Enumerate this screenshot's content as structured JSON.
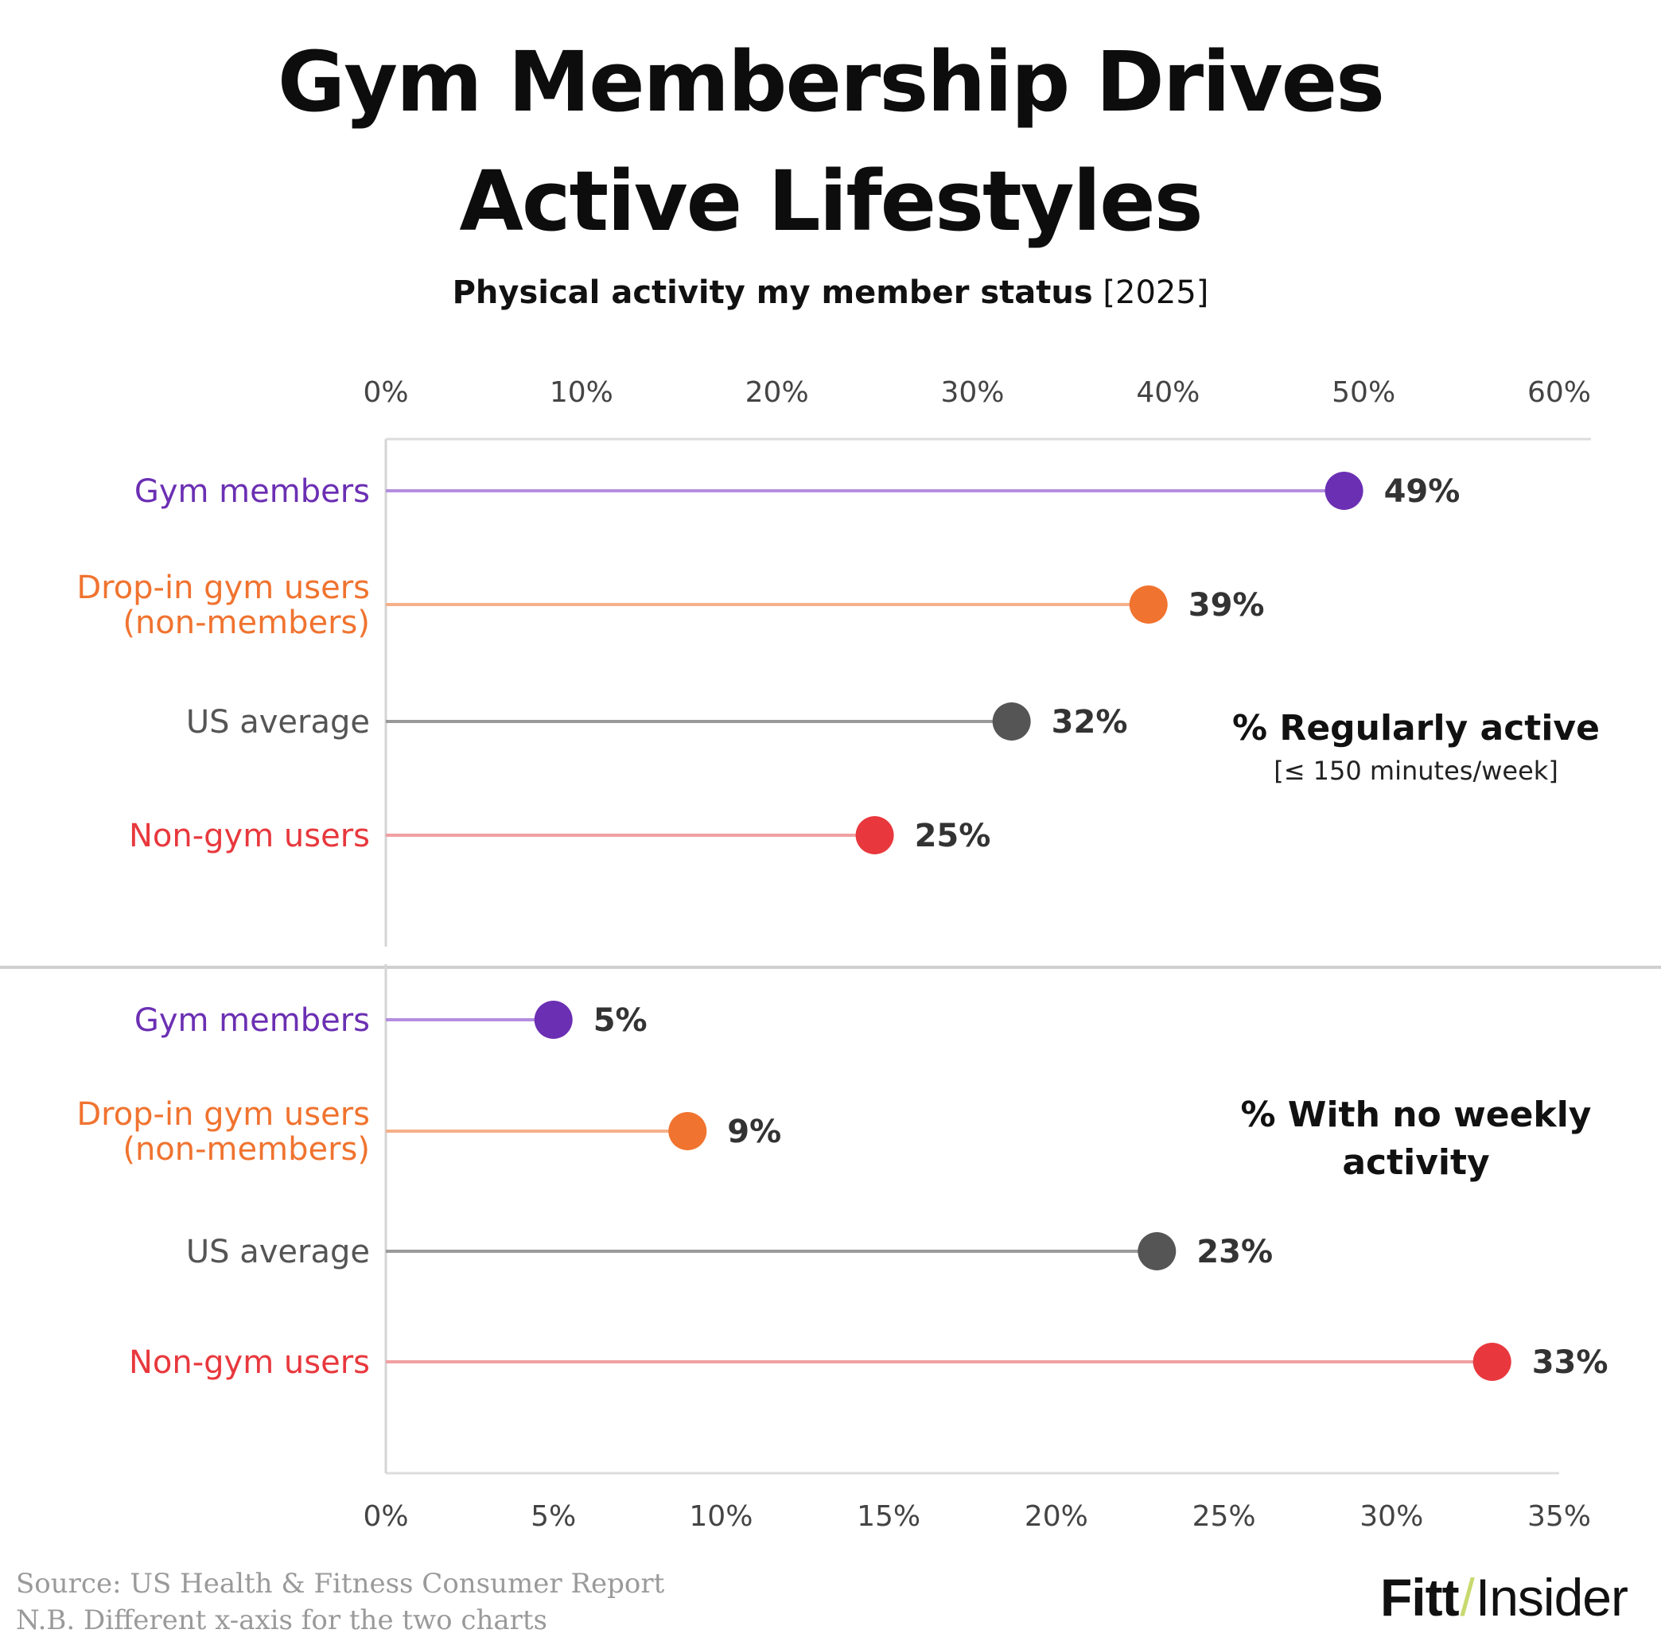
{
  "title_lines": [
    "Gym Membership Drives",
    "Active Lifestyles"
  ],
  "subtitle_main": "Physical activity my member status",
  "subtitle_year": "[2025]",
  "colors": {
    "gym_members": "#6b2fb3",
    "drop_in": "#f0732f",
    "us_average": "#555555",
    "non_gym": "#e8383d"
  },
  "chart_data": [
    {
      "type": "lollipop",
      "categories": [
        "Gym members",
        "Drop-in gym users (non-members)",
        "US average",
        "Non-gym users"
      ],
      "category_lines": [
        [
          "Gym members"
        ],
        [
          "Drop-in gym users",
          "(non-members)"
        ],
        [
          "US average"
        ],
        [
          "Non-gym users"
        ]
      ],
      "values": [
        49,
        39,
        32,
        25
      ],
      "value_labels": [
        "49%",
        "39%",
        "32%",
        "25%"
      ],
      "xlim": [
        0,
        60
      ],
      "xticks": [
        "0%",
        "10%",
        "20%",
        "30%",
        "40%",
        "50%",
        "60%"
      ],
      "axis_position": "top",
      "annotation_lines": [
        "% Regularly active"
      ],
      "annotation_sub": "[≤ 150 minutes/week]"
    },
    {
      "type": "lollipop",
      "categories": [
        "Gym members",
        "Drop-in gym users (non-members)",
        "US average",
        "Non-gym users"
      ],
      "category_lines": [
        [
          "Gym members"
        ],
        [
          "Drop-in gym users",
          "(non-members)"
        ],
        [
          "US average"
        ],
        [
          "Non-gym users"
        ]
      ],
      "values": [
        5,
        9,
        23,
        33
      ],
      "value_labels": [
        "5%",
        "9%",
        "23%",
        "33%"
      ],
      "xlim": [
        0,
        35
      ],
      "xticks": [
        "0%",
        "5%",
        "10%",
        "15%",
        "20%",
        "25%",
        "30%",
        "35%"
      ],
      "axis_position": "bottom",
      "annotation_lines": [
        "% With no weekly",
        "activity"
      ],
      "annotation_sub": ""
    }
  ],
  "source_lines": [
    "Source: US Health & Fitness Consumer Report",
    "N.B. Different x-axis for the two charts"
  ],
  "logo": {
    "part1": "Fitt",
    "separator": "/",
    "part2": "Insider"
  }
}
